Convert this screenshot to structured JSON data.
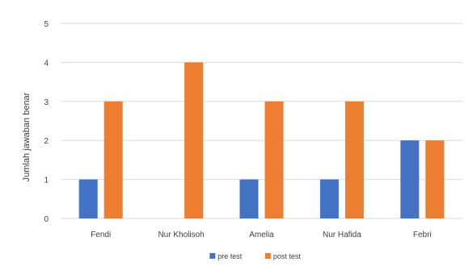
{
  "chart_data": {
    "type": "bar",
    "title": "",
    "xlabel": "",
    "ylabel": "Jumlah jawaban benar",
    "categories": [
      "Fendi",
      "Nur Kholisoh",
      "Amelia",
      "Nur Hafida",
      "Febri"
    ],
    "series": [
      {
        "name": "pre test",
        "color": "#4472C4",
        "values": [
          1,
          0,
          1,
          1,
          2
        ]
      },
      {
        "name": "post test",
        "color": "#ED7D31",
        "values": [
          3,
          4,
          3,
          3,
          2
        ]
      }
    ],
    "ylim": [
      0,
      5
    ],
    "yticks": [
      "0",
      "1",
      "2",
      "3",
      "4",
      "5"
    ],
    "grid": true,
    "legend_position": "bottom-center"
  }
}
